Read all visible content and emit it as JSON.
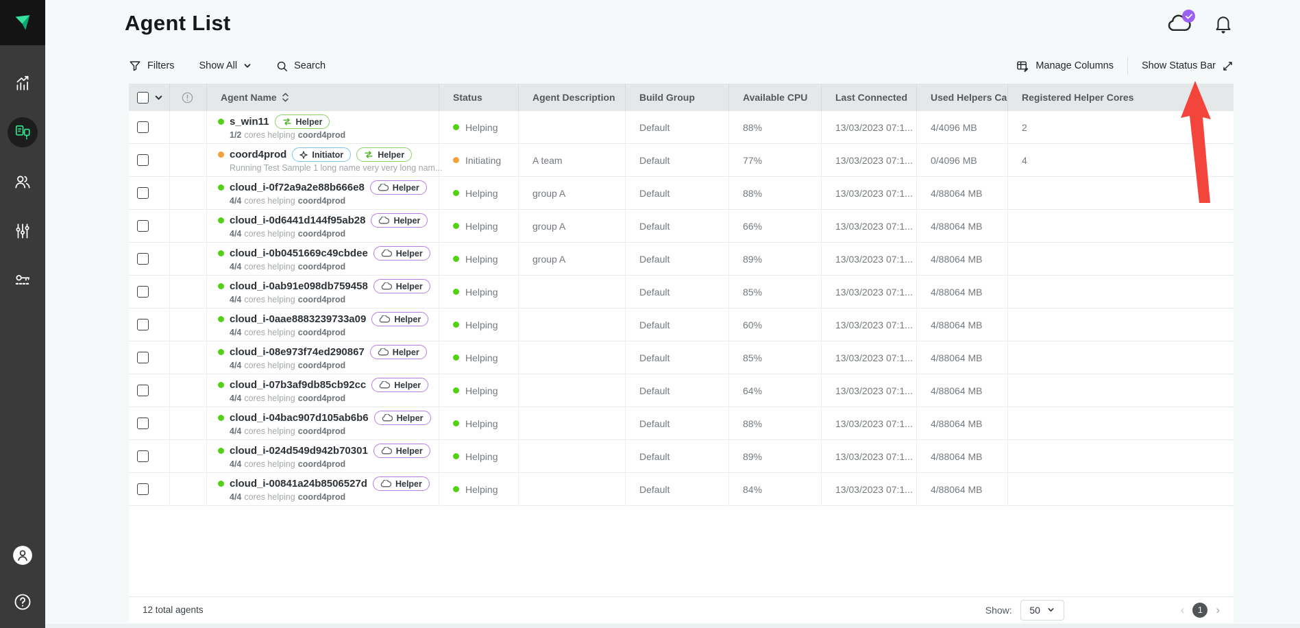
{
  "header": {
    "title": "Agent List"
  },
  "topbar": {
    "icons": [
      {
        "name": "cloud-status-icon",
        "badge": "check",
        "badge_color": "#9b5ff2"
      },
      {
        "name": "notifications-bell-icon"
      }
    ]
  },
  "sidebar": {
    "logo": "incredibuild-logo",
    "items": [
      {
        "icon": "analytics-chart-icon",
        "active": false
      },
      {
        "icon": "agents-icon",
        "active": true
      },
      {
        "icon": "users-icon",
        "active": false
      },
      {
        "icon": "settings-sliders-icon",
        "active": false
      },
      {
        "icon": "license-key-icon",
        "active": false
      }
    ],
    "bottom_items": [
      {
        "icon": "user-avatar-icon"
      },
      {
        "icon": "help-icon"
      }
    ]
  },
  "toolbar": {
    "filters": "Filters",
    "show_all": "Show All",
    "search_placeholder": "Search",
    "manage_columns": "Manage Columns",
    "show_status_bar": "Show Status Bar"
  },
  "table": {
    "columns": [
      "",
      "",
      "Agent Name",
      "Status",
      "Agent Description",
      "Build Group",
      "Available CPU",
      "Last Connected",
      "Used Helpers Ca...",
      "Registered Helper Cores"
    ],
    "rows": [
      {
        "status_color": "green",
        "name": "s_win11",
        "badges": [
          {
            "kind": "sync",
            "label": "Helper"
          }
        ],
        "sub_cores": "1/2",
        "sub_text": "cores helping",
        "sub_target": "coord4prod",
        "status": "Helping",
        "description": "",
        "build_group": "Default",
        "available_cpu": "88%",
        "last_connected": "13/03/2023 07:1...",
        "used_helpers": "4/4096 MB",
        "registered_cores": "2"
      },
      {
        "status_color": "orange",
        "name": "coord4prod",
        "badges": [
          {
            "kind": "initiator",
            "label": "Initiator"
          },
          {
            "kind": "sync",
            "label": "Helper"
          }
        ],
        "sub_cores": "",
        "sub_text": "Running Test Sample 1 long name very very long nam...",
        "sub_target": "",
        "status": "Initiating",
        "description": "A team",
        "build_group": "Default",
        "available_cpu": "77%",
        "last_connected": "13/03/2023 07:1...",
        "used_helpers": "0/4096 MB",
        "registered_cores": "4"
      },
      {
        "status_color": "green",
        "name": "cloud_i-0f72a9a2e88b666e8",
        "badges": [
          {
            "kind": "cloud",
            "label": "Helper"
          }
        ],
        "sub_cores": "4/4",
        "sub_text": "cores helping",
        "sub_target": "coord4prod",
        "status": "Helping",
        "description": "group A",
        "build_group": "Default",
        "available_cpu": "88%",
        "last_connected": "13/03/2023 07:1...",
        "used_helpers": "4/88064 MB",
        "registered_cores": ""
      },
      {
        "status_color": "green",
        "name": "cloud_i-0d6441d144f95ab28",
        "badges": [
          {
            "kind": "cloud",
            "label": "Helper"
          }
        ],
        "sub_cores": "4/4",
        "sub_text": "cores helping",
        "sub_target": "coord4prod",
        "status": "Helping",
        "description": "group A",
        "build_group": "Default",
        "available_cpu": "66%",
        "last_connected": "13/03/2023 07:1...",
        "used_helpers": "4/88064 MB",
        "registered_cores": ""
      },
      {
        "status_color": "green",
        "name": "cloud_i-0b0451669c49cbdee",
        "badges": [
          {
            "kind": "cloud",
            "label": "Helper"
          }
        ],
        "sub_cores": "4/4",
        "sub_text": "cores helping",
        "sub_target": "coord4prod",
        "status": "Helping",
        "description": "group A",
        "build_group": "Default",
        "available_cpu": "89%",
        "last_connected": "13/03/2023 07:1...",
        "used_helpers": "4/88064 MB",
        "registered_cores": ""
      },
      {
        "status_color": "green",
        "name": "cloud_i-0ab91e098db759458",
        "badges": [
          {
            "kind": "cloud",
            "label": "Helper"
          }
        ],
        "sub_cores": "4/4",
        "sub_text": "cores helping",
        "sub_target": "coord4prod",
        "status": "Helping",
        "description": "",
        "build_group": "Default",
        "available_cpu": "85%",
        "last_connected": "13/03/2023 07:1...",
        "used_helpers": "4/88064 MB",
        "registered_cores": ""
      },
      {
        "status_color": "green",
        "name": "cloud_i-0aae8883239733a09",
        "badges": [
          {
            "kind": "cloud",
            "label": "Helper"
          }
        ],
        "sub_cores": "4/4",
        "sub_text": "cores helping",
        "sub_target": "coord4prod",
        "status": "Helping",
        "description": "",
        "build_group": "Default",
        "available_cpu": "60%",
        "last_connected": "13/03/2023 07:1...",
        "used_helpers": "4/88064 MB",
        "registered_cores": ""
      },
      {
        "status_color": "green",
        "name": "cloud_i-08e973f74ed290867",
        "badges": [
          {
            "kind": "cloud",
            "label": "Helper"
          }
        ],
        "sub_cores": "4/4",
        "sub_text": "cores helping",
        "sub_target": "coord4prod",
        "status": "Helping",
        "description": "",
        "build_group": "Default",
        "available_cpu": "85%",
        "last_connected": "13/03/2023 07:1...",
        "used_helpers": "4/88064 MB",
        "registered_cores": ""
      },
      {
        "status_color": "green",
        "name": "cloud_i-07b3af9db85cb92cc",
        "badges": [
          {
            "kind": "cloud",
            "label": "Helper"
          }
        ],
        "sub_cores": "4/4",
        "sub_text": "cores helping",
        "sub_target": "coord4prod",
        "status": "Helping",
        "description": "",
        "build_group": "Default",
        "available_cpu": "64%",
        "last_connected": "13/03/2023 07:1...",
        "used_helpers": "4/88064 MB",
        "registered_cores": ""
      },
      {
        "status_color": "green",
        "name": "cloud_i-04bac907d105ab6b6",
        "badges": [
          {
            "kind": "cloud",
            "label": "Helper"
          }
        ],
        "sub_cores": "4/4",
        "sub_text": "cores helping",
        "sub_target": "coord4prod",
        "status": "Helping",
        "description": "",
        "build_group": "Default",
        "available_cpu": "88%",
        "last_connected": "13/03/2023 07:1...",
        "used_helpers": "4/88064 MB",
        "registered_cores": ""
      },
      {
        "status_color": "green",
        "name": "cloud_i-024d549d942b70301",
        "badges": [
          {
            "kind": "cloud",
            "label": "Helper"
          }
        ],
        "sub_cores": "4/4",
        "sub_text": "cores helping",
        "sub_target": "coord4prod",
        "status": "Helping",
        "description": "",
        "build_group": "Default",
        "available_cpu": "89%",
        "last_connected": "13/03/2023 07:1...",
        "used_helpers": "4/88064 MB",
        "registered_cores": ""
      },
      {
        "status_color": "green",
        "name": "cloud_i-00841a24b8506527d",
        "badges": [
          {
            "kind": "cloud",
            "label": "Helper"
          }
        ],
        "sub_cores": "4/4",
        "sub_text": "cores helping",
        "sub_target": "coord4prod",
        "status": "Helping",
        "description": "",
        "build_group": "Default",
        "available_cpu": "84%",
        "last_connected": "13/03/2023 07:1...",
        "used_helpers": "4/88064 MB",
        "registered_cores": ""
      }
    ]
  },
  "footer": {
    "total": "12 total agents",
    "show_label": "Show:",
    "page_size": "50",
    "page": "1"
  },
  "colors": {
    "accent_green": "#2ee08c",
    "dot_green": "#53d117",
    "dot_orange": "#f2a13c",
    "badge_green_border": "#8ad464",
    "badge_blue_border": "#7fc4ed",
    "badge_purple_border": "#b77fe8",
    "notification_badge": "#9b5ff2",
    "annotation_arrow": "#f4453c",
    "sidebar_bg": "#3a3a3a",
    "header_row_bg": "#e5e8e8"
  }
}
